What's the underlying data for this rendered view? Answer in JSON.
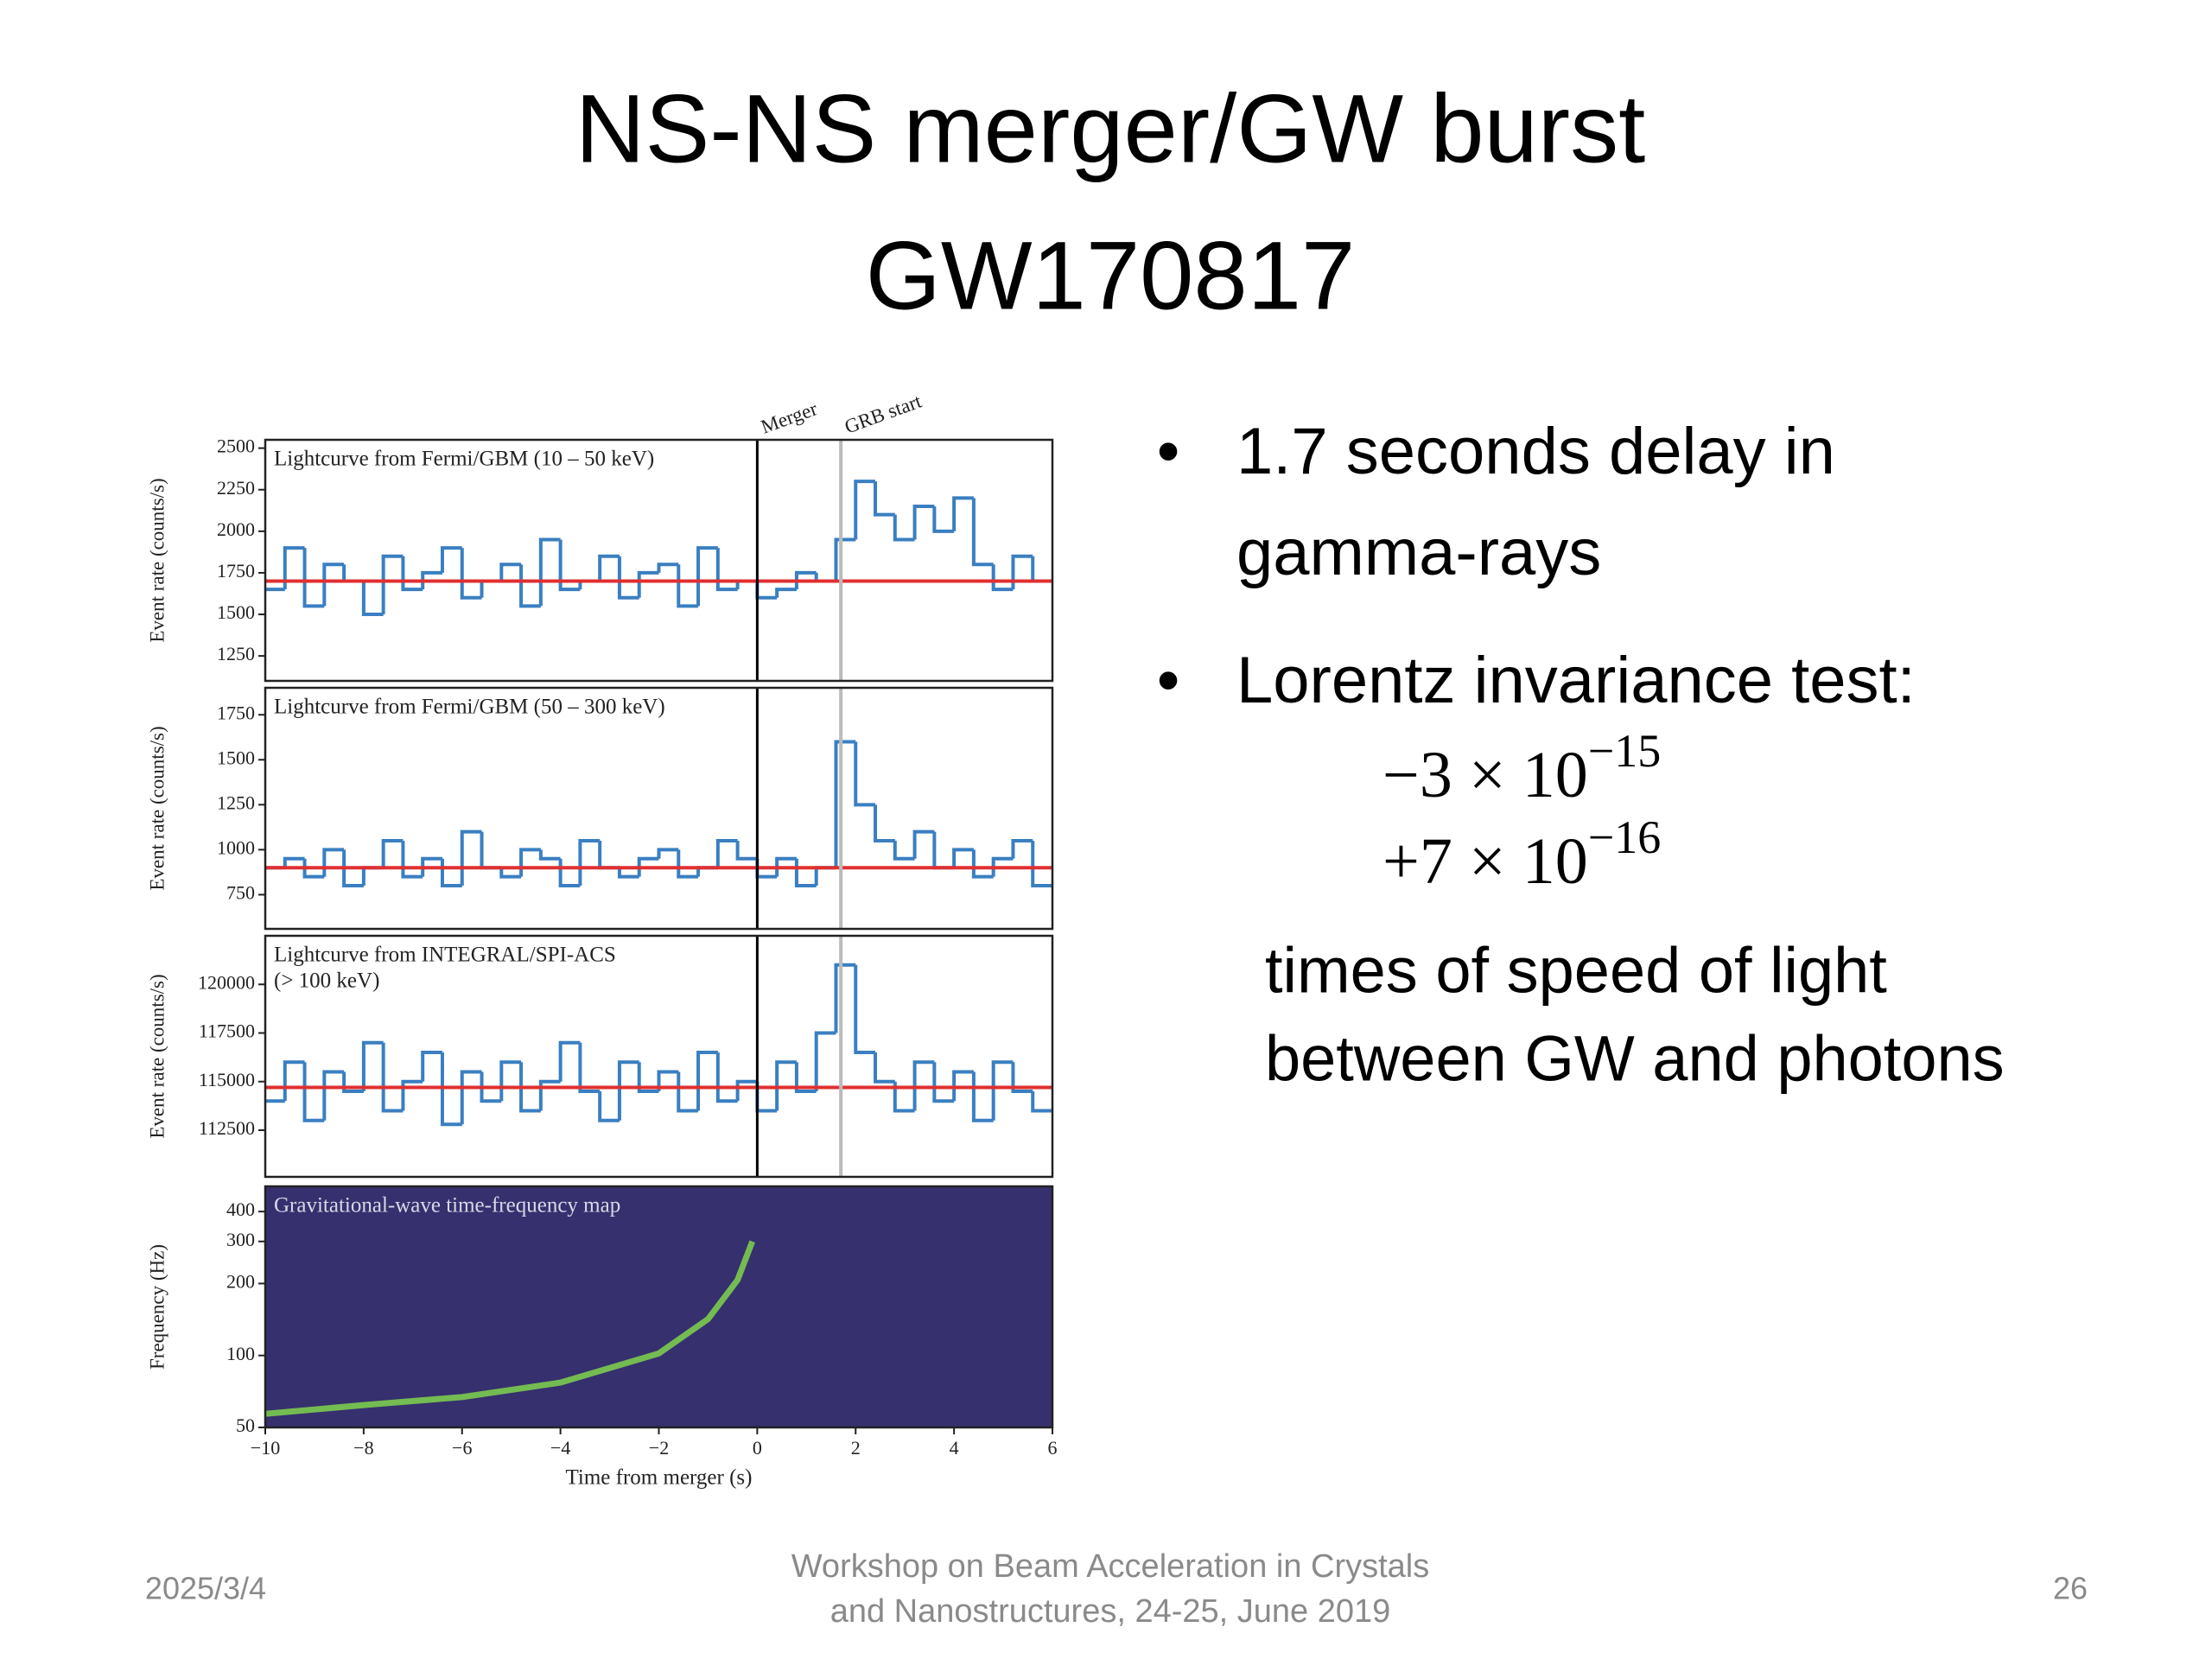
{
  "slide": {
    "title": [
      "NS-NS merger/GW burst",
      "GW170817"
    ],
    "bullets": [
      {
        "lines": [
          "1.7 seconds delay in",
          "gamma-rays"
        ]
      },
      {
        "lines": [
          "Lorentz invariance test:"
        ]
      }
    ],
    "math": [
      {
        "base": "−3 × 10",
        "exponent": "−15"
      },
      {
        "base": "+7 × 10",
        "exponent": "−16"
      }
    ],
    "note": [
      "times of speed of light",
      "between GW and photons"
    ],
    "footer": {
      "date": "2025/3/4",
      "event": [
        "Workshop on Beam Acceleration in Crystals",
        "and Nanostructures, 24-25, June 2019"
      ],
      "page": "26"
    }
  },
  "chart_data": [
    {
      "type": "step",
      "title": [
        "Lightcurve from Fermi/GBM (10 – 50 keV)"
      ],
      "ylabel": "Event rate (counts/s)",
      "color": "#3a7fc1",
      "baseline": 1700,
      "baseline_color": "#e03030",
      "xlim": [
        -10,
        6
      ],
      "ylim": [
        1100,
        2550
      ],
      "yticks": [
        1250,
        1500,
        1750,
        2000,
        2250,
        2500
      ],
      "vlines": [
        {
          "x": 0,
          "label": "Merger",
          "color": "#000000"
        },
        {
          "x": 1.7,
          "label": "GRB start",
          "color": "#bbbbbb"
        }
      ],
      "x": [
        -9.8,
        -9.4,
        -9.0,
        -8.6,
        -8.2,
        -7.8,
        -7.4,
        -7.0,
        -6.6,
        -6.2,
        -5.8,
        -5.4,
        -5.0,
        -4.6,
        -4.2,
        -3.8,
        -3.4,
        -3.0,
        -2.6,
        -2.2,
        -1.8,
        -1.4,
        -1.0,
        -0.6,
        -0.2,
        0.2,
        0.6,
        1.0,
        1.4,
        1.8,
        2.2,
        2.6,
        3.0,
        3.4,
        3.8,
        4.2,
        4.6,
        5.0,
        5.4,
        5.8
      ],
      "values": [
        1650,
        1900,
        1550,
        1800,
        1700,
        1500,
        1850,
        1650,
        1750,
        1900,
        1600,
        1700,
        1800,
        1550,
        1950,
        1650,
        1700,
        1850,
        1600,
        1750,
        1800,
        1550,
        1900,
        1650,
        1700,
        1600,
        1650,
        1750,
        1700,
        1950,
        2300,
        2100,
        1950,
        2150,
        2000,
        2200,
        1800,
        1650,
        1850,
        1700
      ]
    },
    {
      "type": "step",
      "title": [
        "Lightcurve from Fermi/GBM (50 – 300 keV)"
      ],
      "ylabel": "Event rate (counts/s)",
      "color": "#3a7fc1",
      "baseline": 900,
      "baseline_color": "#e03030",
      "xlim": [
        -10,
        6
      ],
      "ylim": [
        560,
        1900
      ],
      "yticks": [
        750,
        1000,
        1250,
        1500,
        1750
      ],
      "x": [
        -9.8,
        -9.4,
        -9.0,
        -8.6,
        -8.2,
        -7.8,
        -7.4,
        -7.0,
        -6.6,
        -6.2,
        -5.8,
        -5.4,
        -5.0,
        -4.6,
        -4.2,
        -3.8,
        -3.4,
        -3.0,
        -2.6,
        -2.2,
        -1.8,
        -1.4,
        -1.0,
        -0.6,
        -0.2,
        0.2,
        0.6,
        1.0,
        1.4,
        1.8,
        2.2,
        2.6,
        3.0,
        3.4,
        3.8,
        4.2,
        4.6,
        5.0,
        5.4,
        5.8
      ],
      "values": [
        900,
        950,
        850,
        1000,
        800,
        900,
        1050,
        850,
        950,
        800,
        1100,
        900,
        850,
        1000,
        950,
        800,
        1050,
        900,
        850,
        950,
        1000,
        850,
        900,
        1050,
        950,
        850,
        950,
        800,
        900,
        1600,
        1250,
        1050,
        950,
        1100,
        900,
        1000,
        850,
        950,
        1050,
        800
      ]
    },
    {
      "type": "step",
      "title": [
        "Lightcurve from INTEGRAL/SPI-ACS",
        "(> 100 keV)"
      ],
      "ylabel": "Event rate (counts/s)",
      "color": "#3a7fc1",
      "baseline": 114700,
      "baseline_color": "#e03030",
      "xlim": [
        -10,
        6
      ],
      "ylim": [
        110100,
        122500
      ],
      "yticks": [
        112500,
        115000,
        117500,
        120000
      ],
      "x": [
        -9.8,
        -9.4,
        -9.0,
        -8.6,
        -8.2,
        -7.8,
        -7.4,
        -7.0,
        -6.6,
        -6.2,
        -5.8,
        -5.4,
        -5.0,
        -4.6,
        -4.2,
        -3.8,
        -3.4,
        -3.0,
        -2.6,
        -2.2,
        -1.8,
        -1.4,
        -1.0,
        -0.6,
        -0.2,
        0.2,
        0.6,
        1.0,
        1.4,
        1.8,
        2.2,
        2.6,
        3.0,
        3.4,
        3.8,
        4.2,
        4.6,
        5.0,
        5.4,
        5.8
      ],
      "values": [
        114000,
        116000,
        113000,
        115500,
        114500,
        117000,
        113500,
        115000,
        116500,
        112800,
        115500,
        114000,
        116000,
        113500,
        115000,
        117000,
        114500,
        113000,
        116000,
        114500,
        115500,
        113500,
        116500,
        114000,
        115000,
        113500,
        116000,
        114500,
        117500,
        121000,
        116500,
        115000,
        113500,
        116000,
        114000,
        115500,
        113000,
        116000,
        114500,
        113500
      ]
    },
    {
      "type": "line",
      "title": [
        "Gravitational-wave time-frequency map"
      ],
      "ylabel": "Frequency (Hz)",
      "xlabel": "Time from merger (s)",
      "color": "#7fd34e",
      "background": "#36306e",
      "log_y": true,
      "xlim": [
        -10,
        6
      ],
      "ylim": [
        50,
        510
      ],
      "yticks": [
        50,
        100,
        200,
        300,
        400
      ],
      "xticks": [
        {
          "value": -10,
          "label": "−10"
        },
        {
          "value": -8,
          "label": "−8"
        },
        {
          "value": -6,
          "label": "−6"
        },
        {
          "value": -4,
          "label": "−4"
        },
        {
          "value": -2,
          "label": "−2"
        },
        0,
        2,
        4,
        6
      ],
      "x": [
        -10,
        -8,
        -6,
        -4,
        -2,
        -1,
        -0.4,
        -0.1
      ],
      "values": [
        57,
        62,
        67,
        77,
        102,
        142,
        207,
        300
      ]
    }
  ]
}
